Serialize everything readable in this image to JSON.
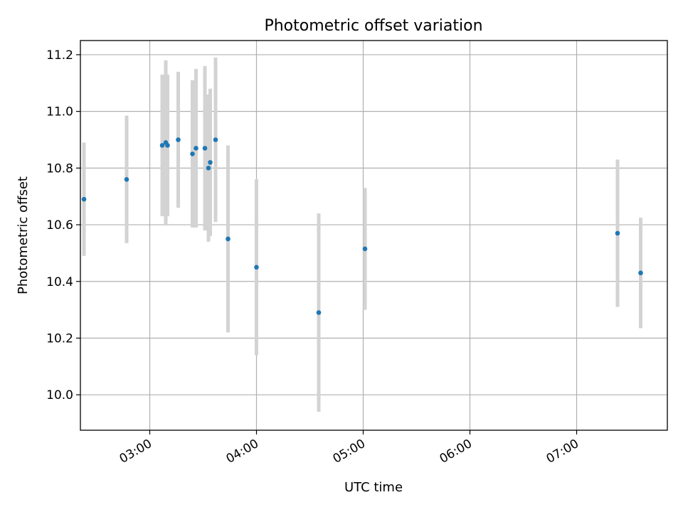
{
  "chart_data": {
    "type": "scatter",
    "title": "Photometric offset variation",
    "xlabel": "UTC time",
    "ylabel": "Photometric offset",
    "xlim": [
      "02:21",
      "07:51"
    ],
    "ylim": [
      9.875,
      11.25
    ],
    "x_ticks": [
      "03:00",
      "04:00",
      "05:00",
      "06:00",
      "07:00"
    ],
    "y_ticks": [
      10.0,
      10.2,
      10.4,
      10.6,
      10.8,
      11.0,
      11.2
    ],
    "grid": true,
    "legend": "none",
    "colors": {
      "marker": "#1f77b4",
      "errorbar": "#d3d3d3",
      "grid": "#b0b0b0"
    },
    "points": [
      {
        "time": "02:23",
        "y": 10.69,
        "yerr": 0.2
      },
      {
        "time": "02:47",
        "y": 10.76,
        "yerr": 0.225
      },
      {
        "time": "03:07",
        "y": 10.88,
        "yerr": 0.25
      },
      {
        "time": "03:09",
        "y": 10.89,
        "yerr": 0.29
      },
      {
        "time": "03:10",
        "y": 10.88,
        "yerr": 0.25
      },
      {
        "time": "03:16",
        "y": 10.9,
        "yerr": 0.24
      },
      {
        "time": "03:24",
        "y": 10.85,
        "yerr": 0.26
      },
      {
        "time": "03:26",
        "y": 10.87,
        "yerr": 0.28
      },
      {
        "time": "03:31",
        "y": 10.87,
        "yerr": 0.29
      },
      {
        "time": "03:33",
        "y": 10.8,
        "yerr": 0.26
      },
      {
        "time": "03:34",
        "y": 10.82,
        "yerr": 0.26
      },
      {
        "time": "03:37",
        "y": 10.9,
        "yerr": 0.29
      },
      {
        "time": "03:44",
        "y": 10.55,
        "yerr": 0.33
      },
      {
        "time": "04:00",
        "y": 10.45,
        "yerr": 0.31
      },
      {
        "time": "04:35",
        "y": 10.29,
        "yerr": 0.35
      },
      {
        "time": "05:01",
        "y": 10.515,
        "yerr": 0.215
      },
      {
        "time": "07:23",
        "y": 10.57,
        "yerr": 0.26
      },
      {
        "time": "07:36",
        "y": 10.43,
        "yerr": 0.195
      }
    ]
  }
}
